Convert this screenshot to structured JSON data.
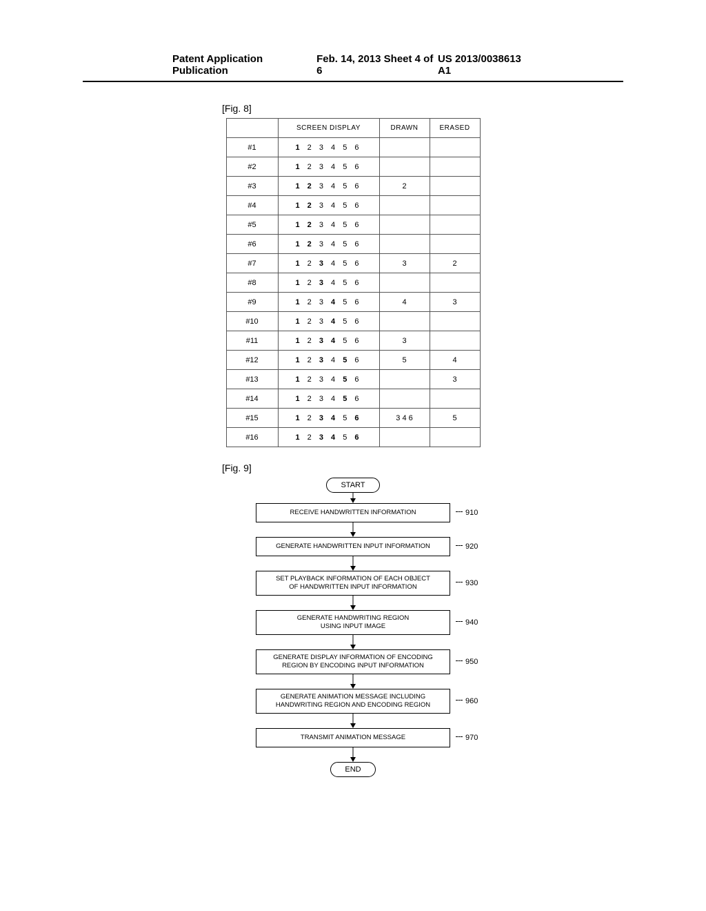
{
  "header": {
    "left": "Patent Application Publication",
    "center": "Feb. 14, 2013  Sheet 4 of 6",
    "right": "US 2013/0038613 A1"
  },
  "fig8": {
    "label": "[Fig. 8]",
    "columns": [
      "",
      "SCREEN DISPLAY",
      "DRAWN",
      "ERASED"
    ],
    "rows": [
      {
        "num": "#1",
        "bold": [
          1
        ],
        "drawn": "",
        "erased": ""
      },
      {
        "num": "#2",
        "bold": [
          1
        ],
        "drawn": "",
        "erased": ""
      },
      {
        "num": "#3",
        "bold": [
          1,
          2
        ],
        "drawn": "2",
        "erased": ""
      },
      {
        "num": "#4",
        "bold": [
          1,
          2
        ],
        "drawn": "",
        "erased": ""
      },
      {
        "num": "#5",
        "bold": [
          1,
          2
        ],
        "drawn": "",
        "erased": ""
      },
      {
        "num": "#6",
        "bold": [
          1,
          2
        ],
        "drawn": "",
        "erased": ""
      },
      {
        "num": "#7",
        "bold": [
          1,
          3
        ],
        "drawn": "3",
        "erased": "2"
      },
      {
        "num": "#8",
        "bold": [
          1,
          3
        ],
        "drawn": "",
        "erased": ""
      },
      {
        "num": "#9",
        "bold": [
          1,
          4
        ],
        "drawn": "4",
        "erased": "3"
      },
      {
        "num": "#10",
        "bold": [
          1,
          4
        ],
        "drawn": "",
        "erased": ""
      },
      {
        "num": "#11",
        "bold": [
          1,
          3,
          4
        ],
        "drawn": "3",
        "erased": ""
      },
      {
        "num": "#12",
        "bold": [
          1,
          3,
          5
        ],
        "drawn": "5",
        "erased": "4"
      },
      {
        "num": "#13",
        "bold": [
          1,
          5
        ],
        "drawn": "",
        "erased": "3"
      },
      {
        "num": "#14",
        "bold": [
          1,
          5
        ],
        "drawn": "",
        "erased": ""
      },
      {
        "num": "#15",
        "bold": [
          1,
          3,
          4,
          6
        ],
        "drawn": "3  4  6",
        "erased": "5"
      },
      {
        "num": "#16",
        "bold": [
          1,
          3,
          4,
          6
        ],
        "drawn": "",
        "erased": ""
      }
    ]
  },
  "fig9": {
    "label": "[Fig. 9]",
    "start": "START",
    "end": "END",
    "steps": [
      {
        "text": "RECEIVE HANDWRITTEN INFORMATION",
        "ref": "910",
        "lines": 1
      },
      {
        "text": "GENERATE HANDWRITTEN INPUT INFORMATION",
        "ref": "920",
        "lines": 1
      },
      {
        "text": "SET PLAYBACK INFORMATION OF EACH OBJECT\nOF HANDWRITTEN INPUT INFORMATION",
        "ref": "930",
        "lines": 2
      },
      {
        "text": "GENERATE HANDWRITING REGION\nUSING INPUT IMAGE",
        "ref": "940",
        "lines": 2
      },
      {
        "text": "GENERATE DISPLAY INFORMATION OF ENCODING\nREGION BY ENCODING INPUT INFORMATION",
        "ref": "950",
        "lines": 2
      },
      {
        "text": "GENERATE ANIMATION MESSAGE INCLUDING\nHANDWRITING REGION AND ENCODING REGION",
        "ref": "960",
        "lines": 2
      },
      {
        "text": "TRANSMIT ANIMATION MESSAGE",
        "ref": "970",
        "lines": 1
      }
    ]
  }
}
